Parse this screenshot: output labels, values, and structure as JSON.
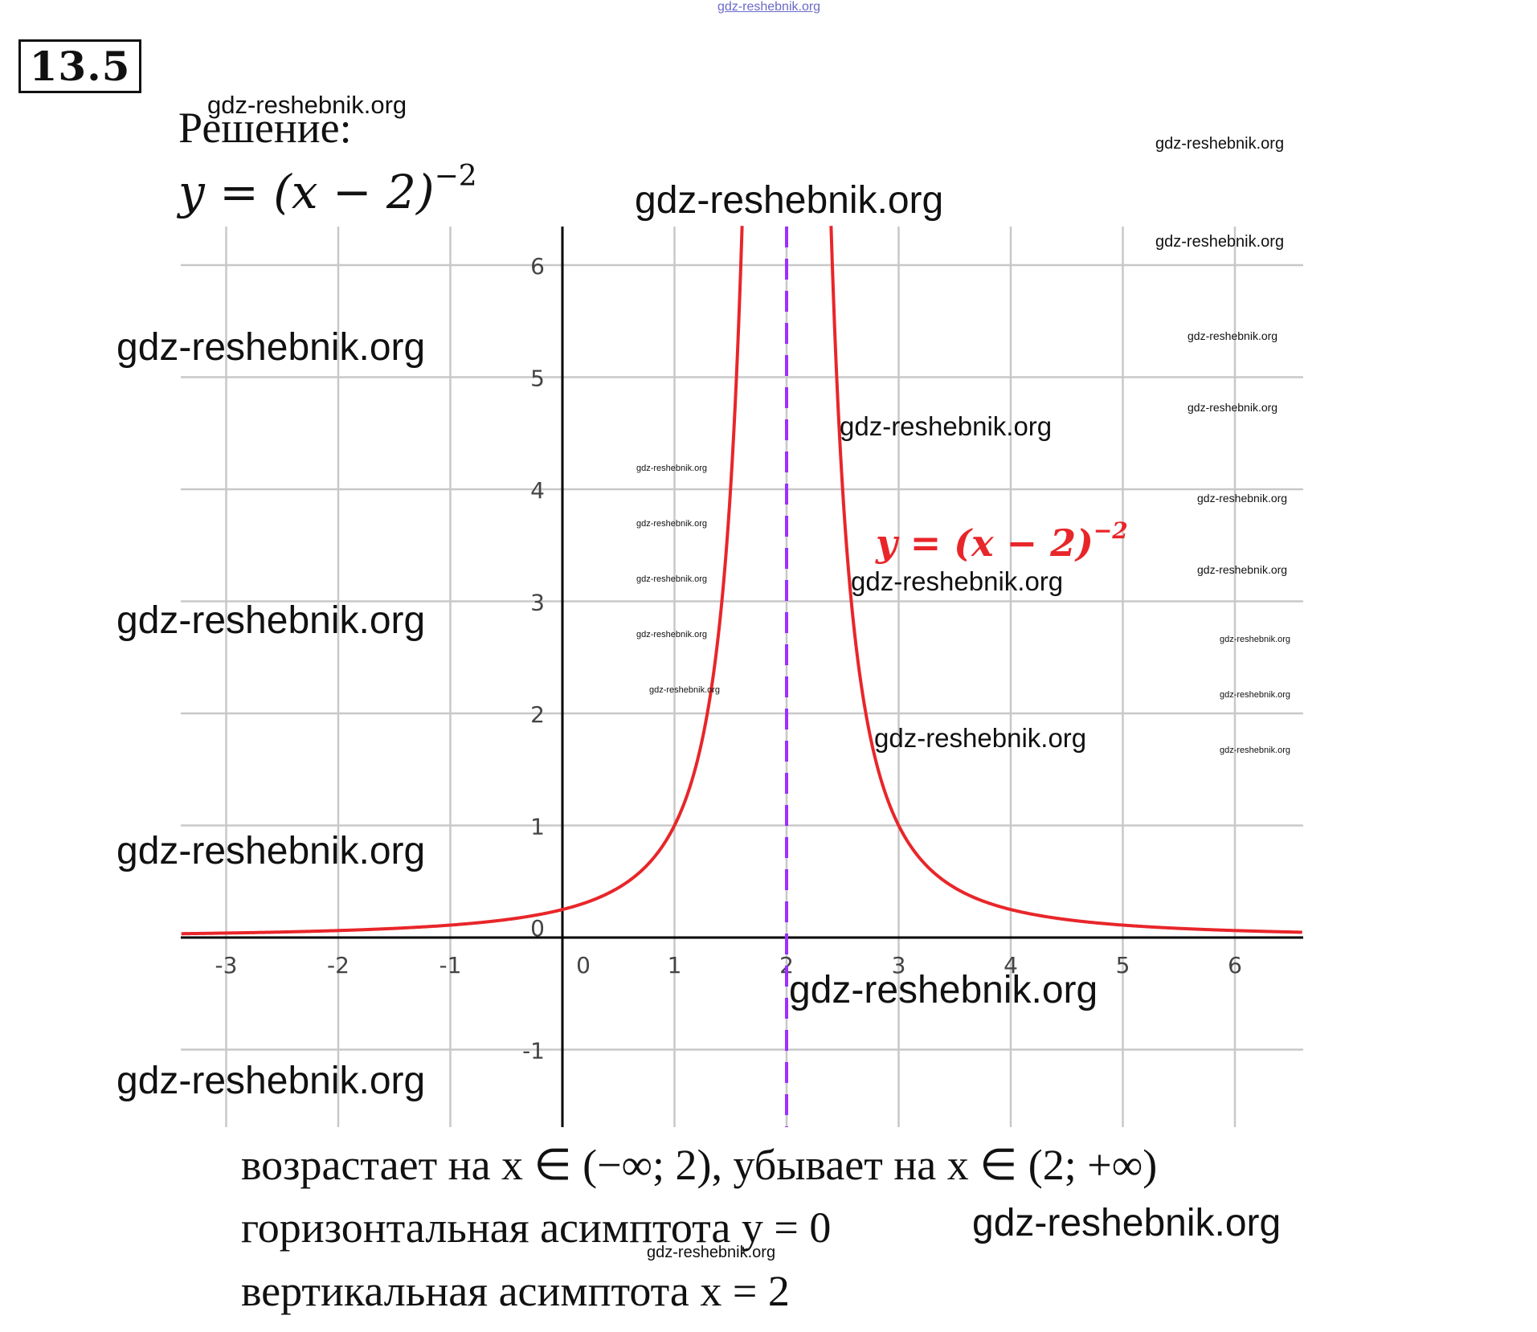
{
  "problem": {
    "number": "13.5",
    "solution_label": "Решение:",
    "formula_base": "y = (x − 2)",
    "formula_exp": "−2"
  },
  "chart_data": {
    "type": "line",
    "function": "y = (x - 2)^-2",
    "series": [
      {
        "name": "y = (x − 2)^−2",
        "color": "#e8262a",
        "branches": [
          {
            "x": [
              -3.4,
              -3,
              -2,
              -1,
              0,
              0.5,
              1,
              1.25,
              1.5,
              1.6
            ],
            "y": [
              0.034,
              0.04,
              0.0625,
              0.111,
              0.25,
              0.444,
              1,
              1.778,
              4,
              6.25
            ]
          },
          {
            "x": [
              2.4,
              2.5,
              2.75,
              3,
              3.5,
              4,
              5,
              6,
              6.6
            ],
            "y": [
              6.25,
              4,
              1.778,
              1,
              0.444,
              0.25,
              0.111,
              0.0625,
              0.047
            ]
          }
        ]
      }
    ],
    "asymptotes": [
      {
        "type": "vertical",
        "x": 2,
        "color": "#9b30ff",
        "style": "dashed"
      }
    ],
    "xlim": [
      -3.4,
      6.6
    ],
    "ylim": [
      -1.7,
      6.35
    ],
    "x_ticks": [
      "-3",
      "-2",
      "-1",
      "0",
      "1",
      "2",
      "3",
      "4",
      "5",
      "6"
    ],
    "y_ticks": [
      "-1",
      "0",
      "1",
      "2",
      "3",
      "4",
      "5",
      "6"
    ],
    "curve_label": "y = (x − 2)",
    "curve_label_exp": "−2",
    "grid": true,
    "colors": {
      "curve": "#e8262a",
      "asymptote": "#9b30ff",
      "grid": "#c8c8c8",
      "axis": "#000000"
    }
  },
  "conclusions": [
    "возрастает на x ∈ (−∞; 2), убывает на x ∈ (2; +∞)",
    "горизонтальная асимптота y = 0",
    "вертикальная асимптота x = 2"
  ],
  "watermark_text": "gdz-reshebnik.org"
}
